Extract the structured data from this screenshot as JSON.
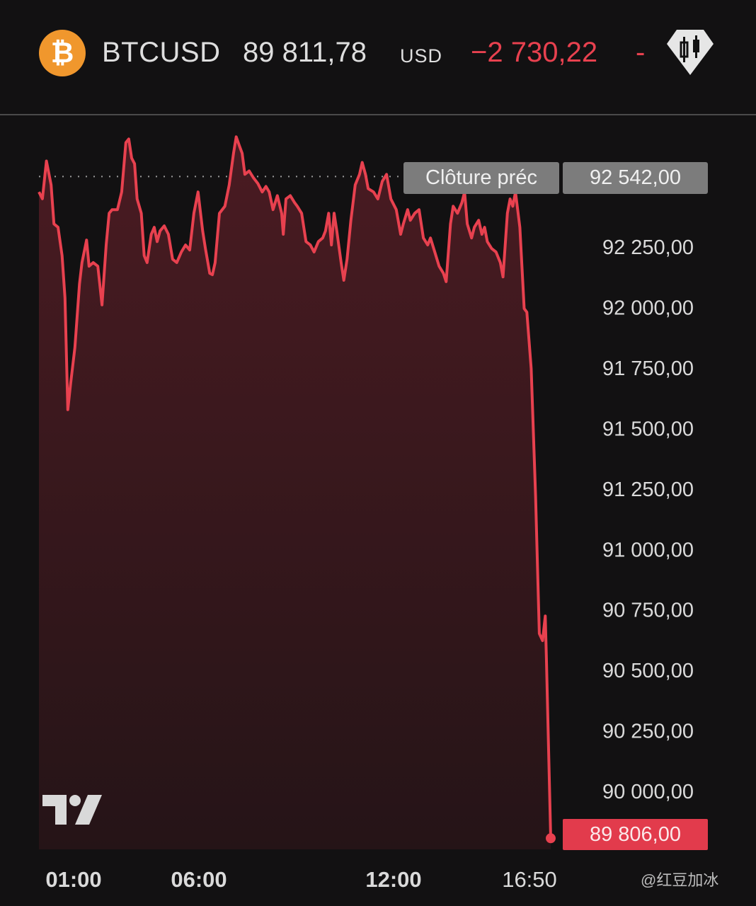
{
  "header": {
    "symbol": "BTCUSD",
    "logo_glyph": "₿",
    "price": "89 811,78",
    "currency": "USD",
    "change": "−2 730,22",
    "change_pct": "-",
    "icon": "candlestick-diamond-icon"
  },
  "colors": {
    "background": "#121112",
    "line": "#e8414f",
    "fill_top": "#4a1b22",
    "fill_bottom": "#251417",
    "bitcoin": "#f0972d",
    "last_price_badge": "#e23b4c",
    "prev_close_badge": "#7c7c7c"
  },
  "prev_close": {
    "label": "Clôture préc",
    "value": "92 542,00"
  },
  "last_price_label": "89 806,00",
  "watermark": "@红豆加冰",
  "chart_data": {
    "type": "area",
    "xlabel": "",
    "ylabel": "",
    "ylim": [
      89760,
      92745
    ],
    "grid": false,
    "x_tick_labels": [
      "01:00",
      "06:00",
      "12:00",
      "16:50"
    ],
    "y_tick_values": [
      92250,
      92000,
      91750,
      91500,
      91250,
      91000,
      90750,
      90500,
      90250,
      90000
    ],
    "y_tick_labels": [
      "92 250,00",
      "92 000,00",
      "91 750,00",
      "91 500,00",
      "91 250,00",
      "91 000,00",
      "90 750,00",
      "90 500,00",
      "90 250,00",
      "90 000,00"
    ],
    "prev_close": 92542,
    "last": 89806,
    "x": [
      "00:00",
      "00:06",
      "00:13",
      "00:21",
      "00:26",
      "00:33",
      "00:40",
      "00:45",
      "00:50",
      "00:55",
      "01:03",
      "01:14",
      "01:20",
      "01:31",
      "01:37",
      "01:47",
      "01:58",
      "02:08",
      "02:18",
      "02:25",
      "02:32",
      "02:45",
      "02:55",
      "03:05",
      "03:12",
      "03:19",
      "03:26",
      "03:32",
      "03:42",
      "03:49",
      "03:56",
      "04:06",
      "04:13",
      "04:20",
      "04:27",
      "04:37",
      "04:47",
      "04:57",
      "05:07",
      "05:18",
      "05:28",
      "05:38",
      "05:48",
      "05:58",
      "06:07",
      "06:12",
      "06:20",
      "06:25",
      "06:30",
      "06:38",
      "06:48",
      "06:56",
      "07:04",
      "07:09",
      "07:15",
      "07:20",
      "07:25",
      "07:33",
      "07:41",
      "07:49",
      "07:57",
      "08:04",
      "08:10",
      "08:17",
      "08:25",
      "08:33",
      "08:36",
      "08:41",
      "08:49",
      "08:57",
      "09:02",
      "09:10",
      "09:18",
      "09:26",
      "09:33",
      "09:41",
      "09:49",
      "09:54",
      "10:00",
      "10:05",
      "10:10",
      "10:15",
      "10:23",
      "10:28",
      "10:34",
      "10:41",
      "10:49",
      "10:57",
      "11:02",
      "11:08",
      "11:13",
      "11:23",
      "11:31",
      "11:39",
      "11:47",
      "11:55",
      "12:05",
      "12:13",
      "12:18",
      "12:26",
      "12:31",
      "12:39",
      "12:47",
      "12:55",
      "13:03",
      "13:08",
      "13:16",
      "13:24",
      "13:32",
      "13:37",
      "13:45",
      "13:50",
      "13:58",
      "14:06",
      "14:11",
      "14:16",
      "14:24",
      "14:29",
      "14:37",
      "14:43",
      "14:48",
      "14:53",
      "15:01",
      "15:09",
      "15:17",
      "15:22",
      "15:30",
      "15:35",
      "15:40",
      "15:45",
      "15:53",
      "16:01",
      "16:06",
      "16:14",
      "16:22",
      "16:29",
      "16:35",
      "16:40",
      "16:42",
      "16:50"
    ],
    "values": [
      92478,
      92450,
      92606,
      92507,
      92346,
      92332,
      92215,
      92040,
      91578,
      91689,
      91835,
      92098,
      92186,
      92279,
      92171,
      92186,
      92171,
      92011,
      92259,
      92390,
      92405,
      92405,
      92478,
      92682,
      92697,
      92618,
      92595,
      92449,
      92390,
      92215,
      92186,
      92303,
      92332,
      92273,
      92317,
      92338,
      92303,
      92200,
      92186,
      92230,
      92259,
      92238,
      92390,
      92478,
      92317,
      92244,
      92142,
      92136,
      92186,
      92390,
      92419,
      92507,
      92638,
      92706,
      92668,
      92638,
      92551,
      92565,
      92536,
      92513,
      92478,
      92501,
      92478,
      92405,
      92463,
      92390,
      92303,
      92449,
      92463,
      92434,
      92419,
      92390,
      92273,
      92259,
      92230,
      92273,
      92288,
      92317,
      92390,
      92259,
      92390,
      92317,
      92186,
      92113,
      92200,
      92361,
      92507,
      92551,
      92600,
      92551,
      92492,
      92478,
      92449,
      92522,
      92551,
      92449,
      92405,
      92303,
      92346,
      92405,
      92361,
      92390,
      92405,
      92288,
      92259,
      92288,
      92230,
      92171,
      92142,
      92107,
      92346,
      92419,
      92390,
      92434,
      92478,
      92346,
      92288,
      92332,
      92361,
      92303,
      92332,
      92273,
      92244,
      92230,
      92186,
      92127,
      92390,
      92449,
      92419,
      92478,
      92332,
      91996,
      91981,
      91748,
      91222,
      90652,
      90623,
      90725,
      90550,
      89806
    ]
  }
}
